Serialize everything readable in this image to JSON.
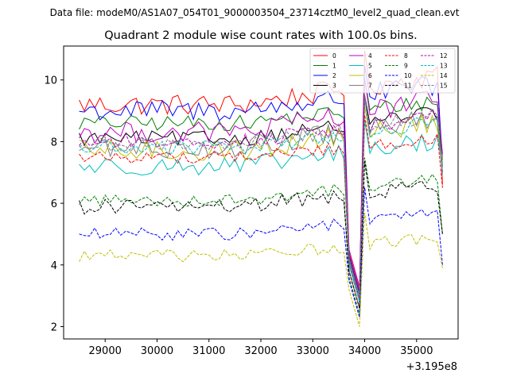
{
  "suptitle": "Data file: modeM0/AS1A07_054T01_9000003504_23714cztM0_level2_quad_clean.evt",
  "chart_data": {
    "type": "line",
    "title": "Quadrant 2 module wise count rates with 100.0s bins.",
    "xlabel": "",
    "ylabel": "",
    "x_offset_label": "+3.195e8",
    "xlim": [
      28200,
      35800
    ],
    "ylim": [
      1.6,
      11.1
    ],
    "x_ticks": [
      29000,
      30000,
      31000,
      32000,
      33000,
      34000,
      35000
    ],
    "x_tick_labels": [
      "29000",
      "30000",
      "31000",
      "32000",
      "33000",
      "34000",
      "35000"
    ],
    "y_ticks": [
      2,
      4,
      6,
      8,
      10
    ],
    "y_tick_labels": [
      "2",
      "4",
      "6",
      "8",
      "10"
    ],
    "x_start": 28500,
    "x_step": 100,
    "n_points": 71,
    "dip": {
      "start_index": 52,
      "gap_index": 53,
      "resume_index": 54,
      "bottom_index": 53
    },
    "series": [
      {
        "name": "0",
        "color": "#ff0000",
        "style": "solid",
        "level": 9.2,
        "noise": 0.35,
        "trend": 0.8,
        "dip_min": 3.2,
        "end": 6.6
      },
      {
        "name": "1",
        "color": "#008000",
        "style": "solid",
        "level": 8.6,
        "noise": 0.25,
        "trend": 0.6,
        "dip_min": 3.0,
        "end": 7.2
      },
      {
        "name": "2",
        "color": "#0000ff",
        "style": "solid",
        "level": 9.0,
        "noise": 0.35,
        "trend": 0.7,
        "dip_min": 3.1,
        "end": 7.4
      },
      {
        "name": "3",
        "color": "#000000",
        "style": "solid",
        "level": 8.1,
        "noise": 0.25,
        "trend": 0.7,
        "dip_min": 3.0,
        "end": 7.0
      },
      {
        "name": "4",
        "color": "#bf00bf",
        "style": "solid",
        "level": 8.3,
        "noise": 0.35,
        "trend": 0.9,
        "dip_min": 3.3,
        "end": 7.6
      },
      {
        "name": "5",
        "color": "#00bfbf",
        "style": "solid",
        "level": 7.2,
        "noise": 0.3,
        "trend": 0.7,
        "dip_min": 2.8,
        "end": 7.2
      },
      {
        "name": "6",
        "color": "#bfbf00",
        "style": "solid",
        "level": 7.7,
        "noise": 0.35,
        "trend": 0.8,
        "dip_min": 2.9,
        "end": 7.4
      },
      {
        "name": "7",
        "color": "#808080",
        "style": "solid",
        "level": 7.8,
        "noise": 0.35,
        "trend": 0.8,
        "dip_min": 3.0,
        "end": 7.0
      },
      {
        "name": "8",
        "color": "#ff0000",
        "style": "dashed",
        "level": 7.5,
        "noise": 0.2,
        "trend": 0.5,
        "dip_min": 2.6,
        "end": 6.5
      },
      {
        "name": "9",
        "color": "#008000",
        "style": "dashed",
        "level": 6.1,
        "noise": 0.2,
        "trend": 0.6,
        "dip_min": 2.4,
        "end": 5.0
      },
      {
        "name": "10",
        "color": "#0000ff",
        "style": "dashed",
        "level": 5.0,
        "noise": 0.2,
        "trend": 0.6,
        "dip_min": 2.3,
        "end": 4.0
      },
      {
        "name": "11",
        "color": "#000000",
        "style": "dashed",
        "level": 5.9,
        "noise": 0.25,
        "trend": 0.6,
        "dip_min": 2.6,
        "end": 5.0
      },
      {
        "name": "12",
        "color": "#bf00bf",
        "style": "dashed",
        "level": 8.0,
        "noise": 0.25,
        "trend": 0.7,
        "dip_min": 2.9,
        "end": 7.0
      },
      {
        "name": "13",
        "color": "#00bfbf",
        "style": "dashed",
        "level": 7.8,
        "noise": 0.25,
        "trend": 0.7,
        "dip_min": 2.8,
        "end": 6.9
      },
      {
        "name": "14",
        "color": "#bfbf00",
        "style": "dashed",
        "level": 4.3,
        "noise": 0.2,
        "trend": 0.5,
        "dip_min": 2.0,
        "end": 3.9
      },
      {
        "name": "15",
        "color": "#808080",
        "style": "dashed",
        "level": 7.9,
        "noise": 0.25,
        "trend": 0.8,
        "dip_min": 2.9,
        "end": 7.0
      }
    ]
  }
}
